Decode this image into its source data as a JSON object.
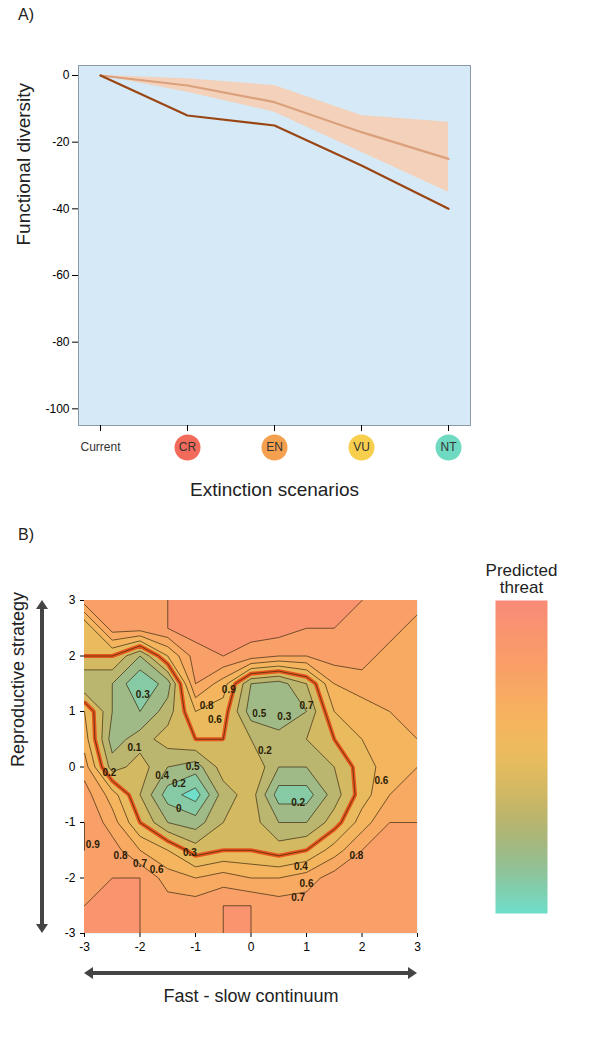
{
  "chart_data": [
    {
      "type": "line",
      "panel": "A)",
      "xlabel": "Extinction scenarios",
      "ylabel": "Functional diversity",
      "categories": [
        "Current",
        "CR",
        "EN",
        "VU",
        "NT"
      ],
      "series": [
        {
          "color": "#9a4514",
          "values": [
            0,
            -12,
            -15,
            -27,
            -40
          ]
        },
        {
          "color": "#dba07c",
          "values": [
            0,
            -3,
            -8,
            -17,
            -25
          ]
        }
      ],
      "band": {
        "color": "#f8cdb0",
        "lower": [
          0,
          -5,
          -11,
          -23,
          -35
        ],
        "upper": [
          0,
          -1,
          -3,
          -12,
          -14
        ]
      },
      "ylim": [
        -105,
        3
      ],
      "yticks": [
        0,
        -20,
        -40,
        -60,
        -80,
        -100
      ]
    },
    {
      "type": "contour",
      "panel": "B)",
      "xlabel": "Fast - slow continuum",
      "ylabel": "Reproductive strategy",
      "xlim": [
        -3,
        3
      ],
      "ylim": [
        -3,
        3
      ],
      "xticks": [
        -3,
        -2,
        -1,
        0,
        1,
        2,
        3
      ],
      "yticks": [
        -3,
        -2,
        -1,
        0,
        1,
        2,
        3
      ],
      "grid_x": [
        -3,
        -2.5,
        -2,
        -1.5,
        -1,
        -0.5,
        0,
        0.5,
        1,
        1.5,
        2,
        2.5,
        3
      ],
      "grid_y": [
        -3,
        -2.5,
        -2,
        -1.5,
        -1,
        -0.5,
        0,
        0.5,
        1,
        1.5,
        2,
        2.5,
        3
      ],
      "threat": [
        [
          null,
          null,
          null,
          null,
          null,
          null,
          null,
          null,
          null,
          null,
          null,
          null,
          null
        ],
        [
          null,
          null,
          null,
          null,
          0.85,
          0.9,
          0.9,
          0.85,
          0.85,
          null,
          null,
          null,
          null
        ],
        [
          null,
          null,
          0.9,
          0.75,
          0.7,
          0.75,
          0.7,
          0.7,
          0.75,
          0.85,
          null,
          null,
          null
        ],
        [
          null,
          0.85,
          0.7,
          0.6,
          0.45,
          0.5,
          0.5,
          0.45,
          0.5,
          0.65,
          0.8,
          null,
          null
        ],
        [
          0.9,
          0.75,
          0.5,
          0.3,
          0.25,
          0.4,
          0.45,
          0.3,
          0.3,
          0.45,
          0.65,
          0.8,
          null
        ],
        [
          0.85,
          0.65,
          0.4,
          0.15,
          0.05,
          0.35,
          0.45,
          0.15,
          0.15,
          0.35,
          0.55,
          0.7,
          null
        ],
        [
          0.75,
          0.35,
          0.45,
          0.3,
          0.25,
          0.45,
          0.5,
          0.3,
          0.3,
          0.4,
          0.55,
          0.65,
          0.7
        ],
        [
          0.65,
          0.25,
          0.35,
          0.45,
          0.5,
          0.5,
          0.4,
          0.35,
          0.4,
          0.5,
          0.6,
          0.65,
          null
        ],
        [
          0.6,
          0.3,
          0.2,
          0.35,
          0.6,
          0.55,
          0.25,
          0.2,
          0.3,
          0.6,
          0.65,
          0.7,
          null
        ],
        [
          null,
          0.3,
          0.1,
          0.25,
          0.8,
          0.65,
          0.3,
          0.25,
          0.4,
          0.7,
          0.75,
          null,
          null
        ],
        [
          null,
          0.5,
          0.3,
          0.6,
          0.85,
          0.9,
          0.85,
          0.8,
          0.8,
          0.85,
          null,
          null,
          null
        ],
        [
          null,
          null,
          0.85,
          0.9,
          0.95,
          0.95,
          0.95,
          0.95,
          0.9,
          null,
          null,
          null,
          null
        ],
        [
          null,
          null,
          null,
          null,
          null,
          null,
          null,
          null,
          null,
          null,
          null,
          null,
          null
        ]
      ],
      "contour_levels": [
        0.1,
        0.2,
        0.3,
        0.4,
        0.5,
        0.6,
        0.7,
        0.8,
        0.9
      ],
      "highlight_level": 0.5,
      "contour_labels": [
        {
          "x": -1.95,
          "y": 1.3,
          "value": 0.3
        },
        {
          "x": -0.8,
          "y": 1.1,
          "value": 0.8
        },
        {
          "x": -0.4,
          "y": 1.4,
          "value": 0.9
        },
        {
          "x": -0.65,
          "y": 0.85,
          "value": 0.6
        },
        {
          "x": 0.15,
          "y": 0.95,
          "value": 0.5
        },
        {
          "x": 0.6,
          "y": 0.9,
          "value": 0.3
        },
        {
          "x": 1.0,
          "y": 1.1,
          "value": 0.7
        },
        {
          "x": 0.25,
          "y": 0.3,
          "value": 0.2
        },
        {
          "x": 2.35,
          "y": -0.25,
          "value": 0.6
        },
        {
          "x": -2.1,
          "y": 0.35,
          "value": 0.1
        },
        {
          "x": -2.55,
          "y": -0.1,
          "value": 0.2
        },
        {
          "x": -1.6,
          "y": -0.15,
          "value": 0.4
        },
        {
          "x": -1.05,
          "y": 0.0,
          "value": 0.5
        },
        {
          "x": -1.3,
          "y": -0.3,
          "value": 0.2
        },
        {
          "x": -1.3,
          "y": -0.75,
          "value": 0
        },
        {
          "x": 0.85,
          "y": -0.65,
          "value": 0.2
        },
        {
          "x": -2.85,
          "y": -1.4,
          "value": 0.9
        },
        {
          "x": -2.35,
          "y": -1.6,
          "value": 0.8
        },
        {
          "x": -2.0,
          "y": -1.75,
          "value": 0.7
        },
        {
          "x": -1.7,
          "y": -1.85,
          "value": 0.6
        },
        {
          "x": -1.1,
          "y": -1.55,
          "value": 0.3
        },
        {
          "x": 0.9,
          "y": -1.8,
          "value": 0.4
        },
        {
          "x": 1.0,
          "y": -2.1,
          "value": 0.6
        },
        {
          "x": 0.85,
          "y": -2.35,
          "value": 0.7
        },
        {
          "x": 1.9,
          "y": -1.6,
          "value": 0.8
        }
      ],
      "colorbar": {
        "title": "Predicted threat",
        "range": [
          0,
          1
        ]
      }
    }
  ]
}
